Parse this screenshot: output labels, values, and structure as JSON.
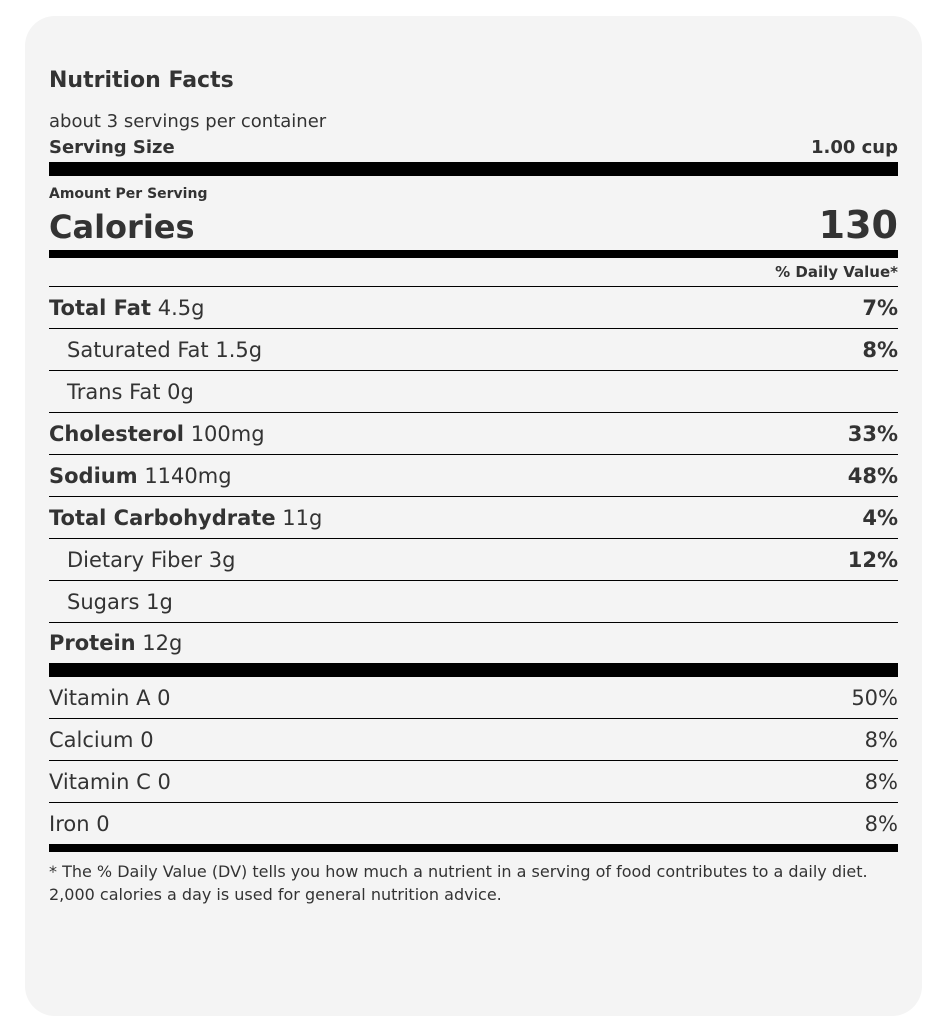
{
  "title": "Nutrition Facts",
  "servings_per_container": "about 3 servings per container",
  "serving_size": {
    "label": "Serving Size",
    "value": "1.00 cup"
  },
  "amount_per_serving": "Amount Per Serving",
  "calories": {
    "label": "Calories",
    "value": "130"
  },
  "daily_value_header": "% Daily Value*",
  "nutrients": [
    {
      "name": "Total Fat",
      "amount": "4.5g",
      "dv": "7%"
    },
    {
      "name": "Saturated Fat",
      "amount": "1.5g",
      "dv": "8%"
    },
    {
      "name": "Trans Fat",
      "amount": "0g",
      "dv": ""
    },
    {
      "name": "Cholesterol",
      "amount": "100mg",
      "dv": "33%"
    },
    {
      "name": "Sodium",
      "amount": "1140mg",
      "dv": "48%"
    },
    {
      "name": "Total Carbohydrate",
      "amount": "11g",
      "dv": "4%"
    },
    {
      "name": "Dietary Fiber",
      "amount": "3g",
      "dv": "12%"
    },
    {
      "name": "Sugars",
      "amount": "1g",
      "dv": ""
    },
    {
      "name": "Protein",
      "amount": "12g",
      "dv": ""
    }
  ],
  "vitamins": [
    {
      "name": "Vitamin A",
      "amount": "0",
      "dv": "50%"
    },
    {
      "name": "Calcium",
      "amount": "0",
      "dv": "8%"
    },
    {
      "name": "Vitamin C",
      "amount": "0",
      "dv": "8%"
    },
    {
      "name": "Iron",
      "amount": "0",
      "dv": "8%"
    }
  ],
  "footnote": "* The % Daily Value (DV) tells you how much a nutrient in a serving of food contributes to a daily diet. 2,000 calories a day is used for general nutrition advice."
}
